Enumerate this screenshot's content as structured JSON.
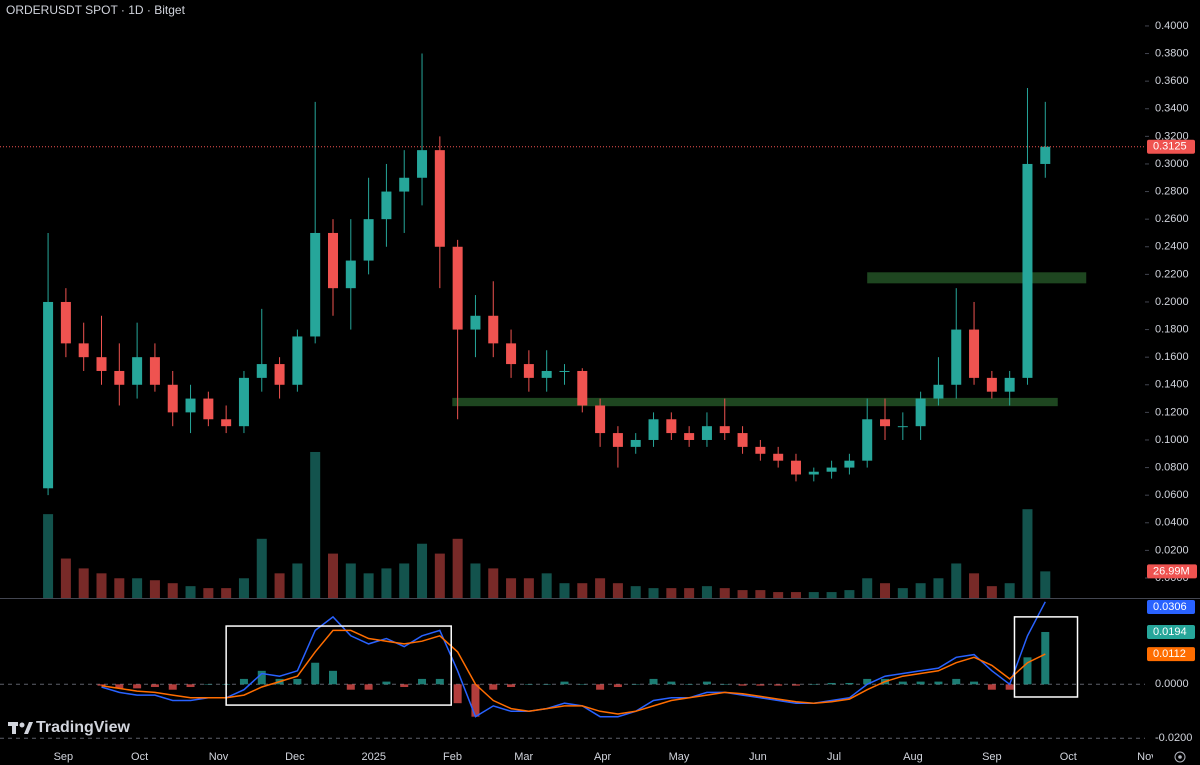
{
  "chart_data": {
    "type": "candlestick",
    "title": "ORDERUSDT SPOT · 1D · Bitget",
    "watermark": "TradingView",
    "xlim": [
      -2.7,
      61.6
    ],
    "xticks": [
      {
        "value": 0.86,
        "label": "Sep"
      },
      {
        "value": 5.14,
        "label": "Oct"
      },
      {
        "value": 9.57,
        "label": "Nov"
      },
      {
        "value": 13.86,
        "label": "Dec"
      },
      {
        "value": 18.29,
        "label": "2025"
      },
      {
        "value": 22.71,
        "label": "Feb"
      },
      {
        "value": 26.71,
        "label": "Mar"
      },
      {
        "value": 31.14,
        "label": "Apr"
      },
      {
        "value": 35.43,
        "label": "May"
      },
      {
        "value": 39.86,
        "label": "Jun"
      },
      {
        "value": 44.14,
        "label": "Jul"
      },
      {
        "value": 48.57,
        "label": "Aug"
      },
      {
        "value": 53,
        "label": "Sep"
      },
      {
        "value": 57.29,
        "label": "Oct"
      },
      {
        "value": 61.71,
        "label": "Nov"
      }
    ],
    "ylim": [
      -0.0145,
      0.4188
    ],
    "yticks": [
      {
        "value": 0,
        "label": "0.0000"
      },
      {
        "value": 0.02,
        "label": "0.0200"
      },
      {
        "value": 0.04,
        "label": "0.0400"
      },
      {
        "value": 0.06,
        "label": "0.0600"
      },
      {
        "value": 0.08,
        "label": "0.0800"
      },
      {
        "value": 0.1,
        "label": "0.1000"
      },
      {
        "value": 0.12,
        "label": "0.1200"
      },
      {
        "value": 0.14,
        "label": "0.1400"
      },
      {
        "value": 0.16,
        "label": "0.1600"
      },
      {
        "value": 0.18,
        "label": "0.1800"
      },
      {
        "value": 0.2,
        "label": "0.2000"
      },
      {
        "value": 0.22,
        "label": "0.2200"
      },
      {
        "value": 0.24,
        "label": "0.2400"
      },
      {
        "value": 0.26,
        "label": "0.2600"
      },
      {
        "value": 0.28,
        "label": "0.2800"
      },
      {
        "value": 0.3,
        "label": "0.3000"
      },
      {
        "value": 0.32,
        "label": "0.3200"
      },
      {
        "value": 0.34,
        "label": "0.3400"
      },
      {
        "value": 0.36,
        "label": "0.3600"
      },
      {
        "value": 0.38,
        "label": "0.3800"
      },
      {
        "value": 0.4,
        "label": "0.4000"
      }
    ],
    "candles": {
      "up_color": "#26a69a",
      "down_color": "#ef5350",
      "open": [
        0.065,
        0.2,
        0.17,
        0.16,
        0.15,
        0.14,
        0.16,
        0.14,
        0.12,
        0.13,
        0.115,
        0.11,
        0.145,
        0.155,
        0.14,
        0.175,
        0.25,
        0.21,
        0.23,
        0.26,
        0.28,
        0.29,
        0.31,
        0.24,
        0.18,
        0.19,
        0.17,
        0.155,
        0.145,
        0.15,
        0.15,
        0.125,
        0.105,
        0.095,
        0.1,
        0.115,
        0.105,
        0.1,
        0.11,
        0.105,
        0.095,
        0.09,
        0.085,
        0.075,
        0.077,
        0.08,
        0.085,
        0.115,
        0.11,
        0.11,
        0.13,
        0.14,
        0.18,
        0.145,
        0.135,
        0.145,
        0.3
      ],
      "high": [
        0.25,
        0.21,
        0.185,
        0.19,
        0.17,
        0.185,
        0.17,
        0.15,
        0.14,
        0.135,
        0.125,
        0.15,
        0.195,
        0.16,
        0.18,
        0.345,
        0.26,
        0.26,
        0.29,
        0.3,
        0.31,
        0.38,
        0.32,
        0.245,
        0.205,
        0.215,
        0.18,
        0.165,
        0.165,
        0.155,
        0.152,
        0.13,
        0.11,
        0.105,
        0.12,
        0.12,
        0.11,
        0.12,
        0.13,
        0.11,
        0.1,
        0.095,
        0.09,
        0.08,
        0.085,
        0.09,
        0.13,
        0.13,
        0.12,
        0.135,
        0.16,
        0.21,
        0.2,
        0.15,
        0.15,
        0.355,
        0.345
      ],
      "low": [
        0.06,
        0.16,
        0.15,
        0.14,
        0.125,
        0.13,
        0.135,
        0.11,
        0.105,
        0.11,
        0.105,
        0.105,
        0.135,
        0.13,
        0.135,
        0.17,
        0.19,
        0.18,
        0.22,
        0.24,
        0.25,
        0.27,
        0.21,
        0.115,
        0.16,
        0.16,
        0.145,
        0.135,
        0.135,
        0.14,
        0.12,
        0.095,
        0.08,
        0.09,
        0.095,
        0.1,
        0.095,
        0.095,
        0.1,
        0.09,
        0.085,
        0.08,
        0.07,
        0.07,
        0.072,
        0.075,
        0.08,
        0.1,
        0.1,
        0.1,
        0.125,
        0.13,
        0.14,
        0.13,
        0.125,
        0.14,
        0.29
      ],
      "close": [
        0.2,
        0.17,
        0.16,
        0.15,
        0.14,
        0.16,
        0.14,
        0.12,
        0.13,
        0.115,
        0.11,
        0.145,
        0.155,
        0.14,
        0.175,
        0.25,
        0.21,
        0.23,
        0.26,
        0.28,
        0.29,
        0.31,
        0.24,
        0.18,
        0.19,
        0.17,
        0.155,
        0.145,
        0.15,
        0.15,
        0.125,
        0.105,
        0.095,
        0.1,
        0.115,
        0.105,
        0.1,
        0.11,
        0.105,
        0.095,
        0.09,
        0.085,
        0.075,
        0.077,
        0.08,
        0.085,
        0.115,
        0.11,
        0.11,
        0.13,
        0.14,
        0.18,
        0.145,
        0.135,
        0.145,
        0.3,
        0.3125
      ],
      "last_label": "0.3125"
    },
    "volume": {
      "vlim": [
        0,
        150
      ],
      "values": [
        85,
        40,
        30,
        25,
        20,
        20,
        18,
        15,
        12,
        10,
        10,
        20,
        60,
        25,
        35,
        148,
        45,
        35,
        25,
        30,
        35,
        55,
        45,
        60,
        35,
        30,
        20,
        20,
        25,
        15,
        15,
        20,
        15,
        12,
        10,
        10,
        10,
        12,
        10,
        8,
        8,
        6,
        6,
        6,
        6,
        8,
        20,
        15,
        10,
        15,
        20,
        35,
        25,
        12,
        15,
        90,
        26.99
      ],
      "last_label": "26.99M"
    },
    "zones": [
      {
        "color": "#1e4620",
        "from_x": 46.0,
        "to_x": 58.3,
        "low": 0.2135,
        "high": 0.2215
      },
      {
        "color": "#1e4620",
        "from_x": 22.7,
        "to_x": 56.7,
        "low": 0.1245,
        "high": 0.1305
      }
    ],
    "macd": {
      "ylim": [
        -0.0225,
        0.032
      ],
      "yticks": [
        {
          "value": 0,
          "label": "0.0000"
        },
        {
          "value": -0.02,
          "label": "-0.0200"
        }
      ],
      "series": [
        {
          "color": "#2962ff",
          "last_label": "0.0306",
          "values": [
            null,
            null,
            null,
            -0.001,
            -0.003,
            -0.004,
            -0.004,
            -0.006,
            -0.006,
            -0.005,
            -0.005,
            -0.002,
            0.004,
            0.003,
            0.005,
            0.02,
            0.025,
            0.018,
            0.015,
            0.017,
            0.014,
            0.018,
            0.02,
            0.005,
            -0.012,
            -0.008,
            -0.01,
            -0.01,
            -0.009,
            -0.007,
            -0.008,
            -0.012,
            -0.012,
            -0.01,
            -0.006,
            -0.005,
            -0.005,
            -0.003,
            -0.003,
            -0.004,
            -0.005,
            -0.006,
            -0.007,
            -0.007,
            -0.006,
            -0.005,
            0.0,
            0.003,
            0.004,
            0.005,
            0.006,
            0.01,
            0.011,
            0.005,
            0.0,
            0.018,
            0.0306
          ]
        },
        {
          "color": "#ff6d00",
          "last_label": "0.0112",
          "values": [
            null,
            null,
            null,
            -0.0005,
            -0.0015,
            -0.0025,
            -0.003,
            -0.004,
            -0.005,
            -0.005,
            -0.005,
            -0.004,
            -0.001,
            0.001,
            0.003,
            0.012,
            0.02,
            0.02,
            0.017,
            0.016,
            0.015,
            0.016,
            0.018,
            0.012,
            0.0,
            -0.006,
            -0.009,
            -0.01,
            -0.009,
            -0.008,
            -0.008,
            -0.01,
            -0.011,
            -0.01,
            -0.008,
            -0.006,
            -0.005,
            -0.004,
            -0.003,
            -0.0035,
            -0.0045,
            -0.0055,
            -0.0065,
            -0.007,
            -0.0065,
            -0.0055,
            -0.002,
            0.001,
            0.003,
            0.004,
            0.005,
            0.008,
            0.01,
            0.007,
            0.002,
            0.008,
            0.0112
          ]
        }
      ],
      "histogram": {
        "up_color": "#26a69a",
        "down_color": "#ef5350",
        "last_label": "0.0194",
        "values": [
          null,
          null,
          null,
          -0.0005,
          -0.0015,
          -0.0015,
          -0.001,
          -0.002,
          -0.001,
          0,
          0,
          0.002,
          0.005,
          0.002,
          0.002,
          0.008,
          0.005,
          -0.002,
          -0.002,
          0.001,
          -0.001,
          0.002,
          0.002,
          -0.007,
          -0.012,
          -0.002,
          -0.001,
          0,
          0,
          0.001,
          0,
          -0.002,
          -0.001,
          0,
          0.002,
          0.001,
          0,
          0.001,
          0,
          -0.0005,
          -0.0005,
          -0.0005,
          -0.0005,
          0,
          0.0005,
          0.0005,
          0.002,
          0.002,
          0.001,
          0.001,
          0.001,
          0.002,
          0.001,
          -0.002,
          -0.002,
          0.01,
          0.0194
        ]
      },
      "boxes": [
        {
          "color": "#ffffff",
          "from_x": 10.0,
          "to_x": 22.64,
          "low": -0.0077,
          "high": 0.0216
        },
        {
          "color": "#ffffff",
          "from_x": 54.27,
          "to_x": 57.81,
          "low": -0.0047,
          "high": 0.025
        }
      ]
    }
  }
}
